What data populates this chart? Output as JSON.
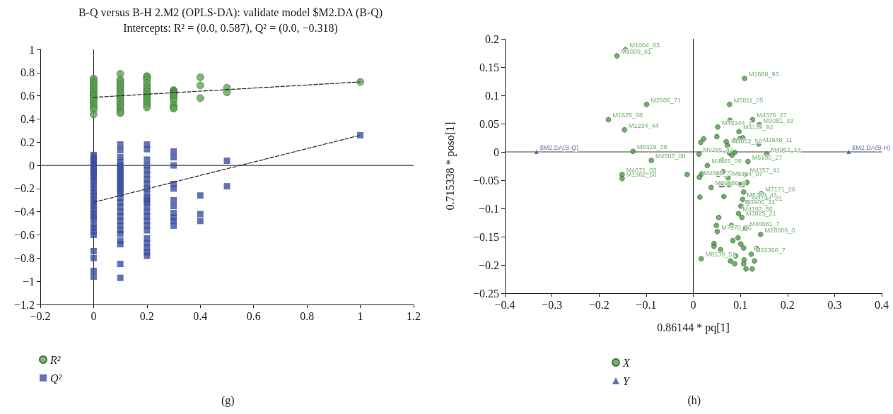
{
  "chart_data": [
    {
      "type": "scatter",
      "title": "B-Q versus B-H 2.M2 (OPLS-DA): validate model $M2.DA (B-Q)",
      "subtitle": "Intercepts: R² = (0.0, 0.587), Q² = (0.0, −0.318)",
      "annotations": [
        "(g)"
      ],
      "xlim": [
        -0.2,
        1.2
      ],
      "xticks": [
        -0.2,
        0,
        0.2,
        0.4,
        0.6,
        0.8,
        1,
        1.2
      ],
      "ylim": [
        -1.2,
        1
      ],
      "yticks": [
        -1.2,
        -1,
        -0.8,
        -0.6,
        -0.4,
        -0.2,
        0,
        0.2,
        0.4,
        0.6,
        0.8,
        1
      ],
      "grid": false,
      "legend": "bottom left",
      "ref_lines": [
        {
          "axis": "x",
          "value": 0,
          "label": null,
          "color": "#222222"
        },
        {
          "axis": "y",
          "value": 0,
          "label": null,
          "color": "#444444"
        }
      ],
      "series": [
        {
          "name": "R²",
          "color": "#5fa555",
          "marker": "circle",
          "x": [
            0,
            0,
            0,
            0,
            0,
            0,
            0,
            0,
            0,
            0,
            0,
            0,
            0,
            0,
            0,
            0,
            0.1,
            0.1,
            0.1,
            0.1,
            0.1,
            0.1,
            0.1,
            0.1,
            0.1,
            0.1,
            0.1,
            0.1,
            0.1,
            0.1,
            0.1,
            0.1,
            0.1,
            0.2,
            0.2,
            0.2,
            0.2,
            0.2,
            0.2,
            0.2,
            0.2,
            0.2,
            0.2,
            0.2,
            0.2,
            0.2,
            0.2,
            0.3,
            0.3,
            0.3,
            0.3,
            0.3,
            0.3,
            0.3,
            0.3,
            0.3,
            0.3,
            0.3,
            0.4,
            0.4,
            0.4,
            0.5,
            0.5,
            1
          ],
          "values": [
            0.75,
            0.73,
            0.71,
            0.69,
            0.67,
            0.65,
            0.63,
            0.61,
            0.6,
            0.58,
            0.56,
            0.54,
            0.52,
            0.5,
            0.48,
            0.44,
            0.79,
            0.74,
            0.72,
            0.7,
            0.68,
            0.66,
            0.64,
            0.62,
            0.6,
            0.58,
            0.56,
            0.54,
            0.52,
            0.5,
            0.48,
            0.46,
            0.45,
            0.77,
            0.76,
            0.74,
            0.71,
            0.68,
            0.66,
            0.64,
            0.62,
            0.6,
            0.58,
            0.56,
            0.54,
            0.52,
            0.5,
            0.65,
            0.64,
            0.63,
            0.62,
            0.61,
            0.6,
            0.58,
            0.56,
            0.52,
            0.5,
            0.49,
            0.76,
            0.69,
            0.58,
            0.67,
            0.63,
            0.72
          ]
        },
        {
          "name": "Q²",
          "color": "#3b4fa0",
          "marker": "square",
          "x": [
            0,
            0,
            0,
            0,
            0,
            0,
            0,
            0,
            0,
            0,
            0,
            0,
            0,
            0,
            0,
            0,
            0,
            0,
            0,
            0,
            0,
            0,
            0,
            0,
            0,
            0,
            0,
            0,
            0,
            0,
            0,
            0.1,
            0.1,
            0.1,
            0.1,
            0.1,
            0.1,
            0.1,
            0.1,
            0.1,
            0.1,
            0.1,
            0.1,
            0.1,
            0.1,
            0.1,
            0.1,
            0.1,
            0.1,
            0.1,
            0.1,
            0.1,
            0.1,
            0.1,
            0.1,
            0.1,
            0.1,
            0.1,
            0.1,
            0.1,
            0.1,
            0.2,
            0.2,
            0.2,
            0.2,
            0.2,
            0.2,
            0.2,
            0.2,
            0.2,
            0.2,
            0.2,
            0.2,
            0.2,
            0.2,
            0.2,
            0.2,
            0.2,
            0.2,
            0.2,
            0.2,
            0.2,
            0.2,
            0.2,
            0.2,
            0.3,
            0.3,
            0.3,
            0.3,
            0.3,
            0.3,
            0.3,
            0.3,
            0.3,
            0.3,
            0.3,
            0.4,
            0.4,
            0.4,
            0.5,
            0.5,
            1
          ],
          "values": [
            0.09,
            0.07,
            0.05,
            0.03,
            0.01,
            -0.01,
            -0.03,
            -0.05,
            -0.07,
            -0.09,
            -0.11,
            -0.14,
            -0.17,
            -0.2,
            -0.23,
            -0.26,
            -0.29,
            -0.32,
            -0.35,
            -0.38,
            -0.41,
            -0.44,
            -0.46,
            -0.51,
            -0.54,
            -0.57,
            -0.6,
            -0.74,
            -0.8,
            -0.91,
            -0.96,
            0.18,
            0.13,
            0.07,
            0.03,
            0,
            -0.04,
            -0.08,
            -0.12,
            -0.16,
            -0.2,
            -0.24,
            -0.28,
            -0.32,
            -0.36,
            -0.4,
            -0.44,
            -0.48,
            -0.52,
            -0.56,
            -0.59,
            -0.65,
            -0.68,
            -0.85,
            -0.97,
            -0.02,
            -0.06,
            -0.1,
            -0.14,
            -0.18,
            -0.22,
            0.18,
            0.14,
            0.05,
            0,
            -0.04,
            -0.08,
            -0.12,
            -0.16,
            -0.2,
            -0.24,
            -0.28,
            -0.32,
            -0.36,
            -0.4,
            -0.44,
            -0.48,
            -0.52,
            -0.56,
            -0.63,
            -0.67,
            -0.71,
            -0.75,
            -0.78,
            -0.3,
            0.12,
            0.07,
            0,
            -0.16,
            -0.2,
            -0.3,
            -0.35,
            -0.41,
            -0.45,
            -0.48,
            -0.52,
            -0.26,
            -0.42,
            -0.48,
            0.04,
            -0.18,
            0.26
          ]
        },
        {
          "type": "line",
          "color": "#333333",
          "marker": "none",
          "line_style": "dashed",
          "x": [
            0,
            1
          ],
          "values": [
            0.587,
            0.72
          ]
        },
        {
          "type": "line",
          "color": "#333333",
          "marker": "none",
          "line_style": "dashed",
          "x": [
            0,
            1
          ],
          "values": [
            -0.318,
            0.26
          ]
        }
      ]
    },
    {
      "type": "scatter",
      "xlabel": "0.86144 * pq[1]",
      "ylabel": "0.715338 * poso[1]",
      "annotations": [
        "(h)"
      ],
      "xlim": [
        -0.4,
        0.4
      ],
      "xticks": [
        -0.4,
        -0.3,
        -0.2,
        -0.1,
        0,
        0.1,
        0.2,
        0.3,
        0.4
      ],
      "ylim": [
        -0.25,
        0.2
      ],
      "yticks": [
        -0.25,
        -0.2,
        -0.15,
        -0.1,
        -0.05,
        0,
        0.05,
        0.1,
        0.15,
        0.2
      ],
      "grid": false,
      "legend": "bottom left",
      "ref_lines": [
        {
          "axis": "x",
          "value": 0,
          "label": null,
          "color": "#222222"
        },
        {
          "axis": "y",
          "value": 0,
          "label": null,
          "color": "#444444"
        }
      ],
      "series": [
        {
          "name": "X",
          "color": "#4f9a48",
          "marker": "circle",
          "x": [
            -0.144,
            -0.162,
            -0.099,
            -0.18,
            -0.146,
            -0.128,
            -0.089,
            -0.151,
            -0.151,
            -0.013,
            0.109,
            0.077,
            0.078,
            0.126,
            0.14,
            0.052,
            0.097,
            0.05,
            0.022,
            0.016,
            0.07,
            0.087,
            0.099,
            0.105,
            0.073,
            0.139,
            0.012,
            0.077,
            0.088,
            0.082,
            0.156,
            0.061,
            0.116,
            0.03,
            0.018,
            0.053,
            0.063,
            0.111,
            0.013,
            0.074,
            0.114,
            0.058,
            0.063,
            0.076,
            0.099,
            0.105,
            0.038,
            0.107,
            0.144,
            0.014,
            0.065,
            0.105,
            0.116,
            0.101,
            0.096,
            0.054,
            0.103,
            0.049,
            0.081,
            0.111,
            0.051,
            0.143,
            0.095,
            0.084,
            0.044,
            0.044,
            0.101,
            0.058,
            0.107,
            0.135,
            0.123,
            0.09,
            0.017,
            0.079,
            0.108,
            0.13,
            0.088,
            0.107,
            0.112,
            0.125
          ],
          "values": [
            0.181,
            0.17,
            0.084,
            0.057,
            0.039,
            0.001,
            -0.015,
            -0.04,
            -0.047,
            -0.04,
            0.13,
            0.084,
            0.056,
            0.057,
            0.048,
            0.044,
            0.036,
            0.027,
            0.023,
            0.017,
            0.018,
            0.02,
            0.023,
            0.025,
            0.011,
            0.014,
            -0.004,
            -0.002,
            -0.001,
            -0.006,
            -0.004,
            -0.015,
            -0.017,
            -0.024,
            -0.039,
            -0.04,
            -0.035,
            -0.04,
            -0.045,
            -0.046,
            -0.054,
            -0.058,
            -0.058,
            -0.058,
            -0.058,
            -0.058,
            -0.063,
            -0.071,
            -0.074,
            -0.08,
            -0.079,
            -0.084,
            -0.09,
            -0.096,
            -0.109,
            -0.116,
            -0.116,
            -0.13,
            -0.13,
            -0.135,
            -0.141,
            -0.146,
            -0.152,
            -0.157,
            -0.162,
            -0.167,
            -0.163,
            -0.173,
            -0.17,
            -0.171,
            -0.181,
            -0.184,
            -0.189,
            -0.193,
            -0.191,
            -0.193,
            -0.198,
            -0.198,
            -0.207,
            -0.207
          ],
          "value_labels": [
            "M1004_63",
            "M1009_81",
            "M2506_71",
            "M1625_88",
            "M1234_44",
            "M5319_39",
            "M4507_08",
            "M4671_03",
            "M1982_50",
            null,
            "M1688_93",
            "M5811_05",
            null,
            "M4076_27",
            "M3081_33",
            "M43344_1",
            "M4129_92",
            null,
            null,
            null,
            null,
            null,
            null,
            null,
            "M4652_50",
            "M2648_11",
            "M9285_47",
            null,
            null,
            null,
            "M4062_14",
            null,
            "M5100_27",
            "M4825_09",
            null,
            null,
            null,
            "M4257_41",
            "M4810_72",
            "M6814_07",
            null,
            null,
            null,
            null,
            null,
            null,
            "M29086_9",
            null,
            "M7171_26",
            null,
            null,
            "M8364_43",
            "M4144_81",
            "M3900_31",
            "M4192_56",
            null,
            "M3825_21",
            null,
            null,
            "M40081_7",
            "M7970_76",
            "M28086_0",
            null,
            null,
            null,
            null,
            null,
            null,
            null,
            null,
            "M22368_7",
            null,
            "M8139_51",
            null,
            null,
            null,
            null,
            null,
            null,
            null
          ]
        },
        {
          "name": "Y",
          "color": "#3b4fa0",
          "marker": "triangle",
          "x": [
            -0.333,
            0.33
          ],
          "values": [
            0,
            0
          ],
          "value_labels": [
            "$M2.DA(B-Q)",
            "$M2.DA(B-H)"
          ]
        }
      ]
    }
  ]
}
